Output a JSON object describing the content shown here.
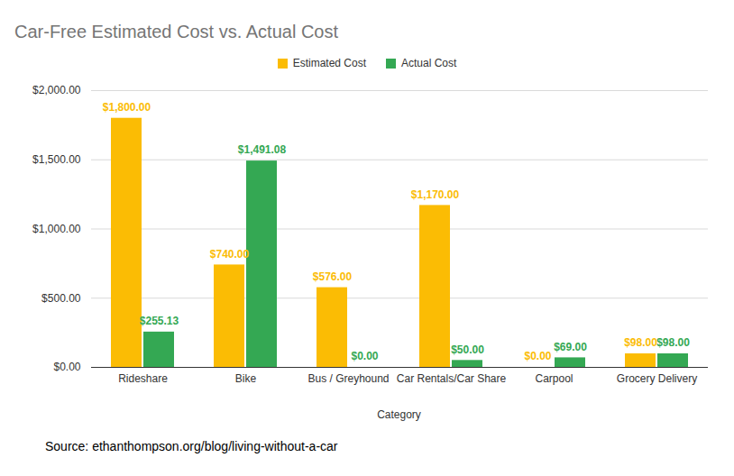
{
  "chart_data": {
    "type": "bar",
    "title": "Car-Free Estimated Cost vs. Actual Cost",
    "x_label": "Category",
    "source": "Source: ethanthompson.org/blog/living-without-a-car",
    "categories": [
      "Rideshare",
      "Bike",
      "Bus / Greyhound",
      "Car Rentals/Car Share",
      "Carpool",
      "Grocery Delivery"
    ],
    "series": [
      {
        "name": "Estimated Cost",
        "color": "#fbbc04",
        "values": [
          1800,
          740,
          576,
          1170,
          0,
          98
        ],
        "value_labels": [
          "$1,800.00",
          "$740.00",
          "$576.00",
          "$1,170.00",
          "$0.00",
          "$98.00"
        ]
      },
      {
        "name": "Actual Cost",
        "color": "#34a853",
        "values": [
          255.13,
          1491.08,
          0,
          50,
          69,
          98
        ],
        "value_labels": [
          "$255.13",
          "$1,491.08",
          "$0.00",
          "$50.00",
          "$69.00",
          "$98.00"
        ]
      }
    ],
    "ylim": [
      0,
      2000
    ],
    "yticks": [
      {
        "value": 0,
        "label": "$0.00"
      },
      {
        "value": 500,
        "label": "$500.00"
      },
      {
        "value": 1000,
        "label": "$1,000.00"
      },
      {
        "value": 1500,
        "label": "$1,500.00"
      },
      {
        "value": 2000,
        "label": "$2,000.00"
      }
    ],
    "grid": true,
    "legend": "top",
    "data_labels": true
  }
}
